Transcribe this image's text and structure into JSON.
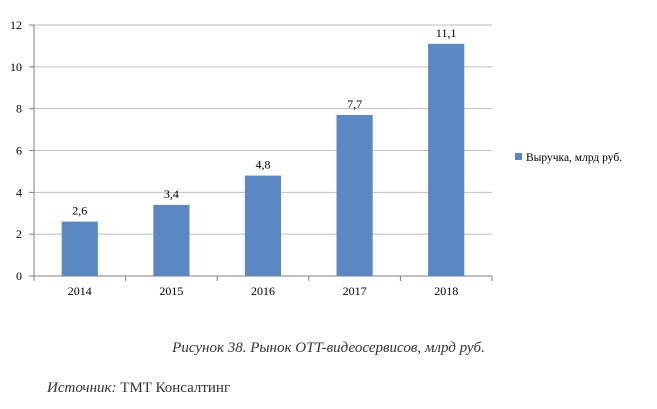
{
  "chart_data": {
    "type": "bar",
    "categories": [
      "2014",
      "2015",
      "2016",
      "2017",
      "2018"
    ],
    "series": [
      {
        "name": "Выручка, млрд руб.",
        "values": [
          2.6,
          3.4,
          4.8,
          7.7,
          11.1
        ],
        "value_labels": [
          "2,6",
          "3,4",
          "4,8",
          "7,7",
          "11,1"
        ]
      }
    ],
    "ylim": [
      0,
      12
    ],
    "yticks": [
      0,
      2,
      4,
      6,
      8,
      10,
      12
    ],
    "grid": true,
    "legend_position": "right",
    "bar_color": "#5b87c3",
    "grid_color": "#bfbfbf"
  },
  "caption": "Рисунок 38. Рынок OTT-видеосервисов, млрд руб.",
  "source": {
    "label": "Источник:",
    "value": "TMT Консалтинг"
  }
}
